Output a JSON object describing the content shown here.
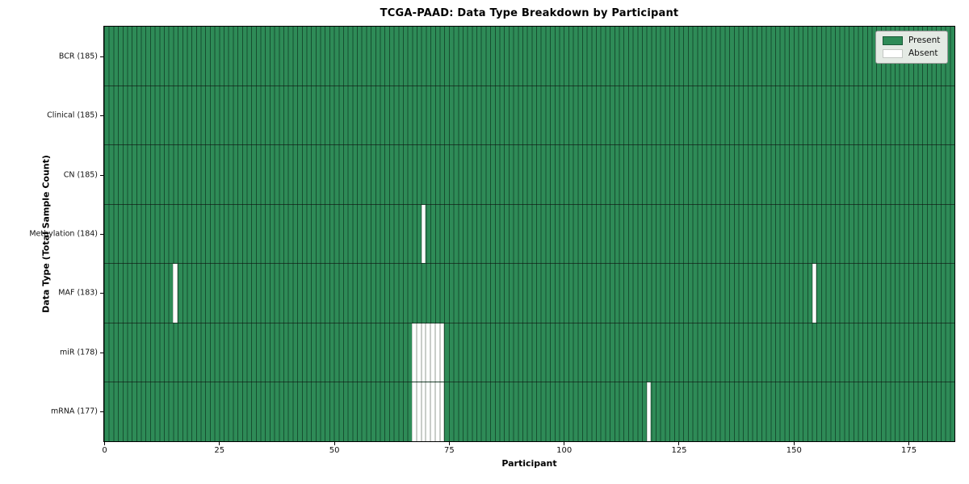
{
  "chart_data": {
    "type": "heatmap",
    "title": "TCGA-PAAD: Data Type Breakdown by Participant",
    "xlabel": "Participant",
    "ylabel": "Data Type (Total Sample Count)",
    "n_participants": 185,
    "xlim": [
      0,
      185
    ],
    "x_ticks": [
      0,
      25,
      50,
      75,
      100,
      125,
      150,
      175
    ],
    "grid": "cell-borders",
    "legend": {
      "position": "upper-right",
      "entries": [
        {
          "label": "Present",
          "color": "#2e8b57"
        },
        {
          "label": "Absent",
          "color": "#ffffff"
        }
      ]
    },
    "rows": [
      {
        "label": "BCR (185)",
        "data_type": "BCR",
        "total_samples": 185,
        "absent_participants": []
      },
      {
        "label": "Clinical (185)",
        "data_type": "Clinical",
        "total_samples": 185,
        "absent_participants": []
      },
      {
        "label": "CN (185)",
        "data_type": "CN",
        "total_samples": 185,
        "absent_participants": []
      },
      {
        "label": "Methylation (184)",
        "data_type": "Methylation",
        "total_samples": 184,
        "absent_participants": [
          69
        ]
      },
      {
        "label": "MAF (183)",
        "data_type": "MAF",
        "total_samples": 183,
        "absent_participants": [
          15,
          154
        ]
      },
      {
        "label": "miR (178)",
        "data_type": "miR",
        "total_samples": 178,
        "absent_participants": [
          67,
          68,
          69,
          70,
          71,
          72,
          73
        ]
      },
      {
        "label": "mRNA (177)",
        "data_type": "mRNA",
        "total_samples": 177,
        "absent_participants": [
          67,
          68,
          69,
          70,
          71,
          72,
          73,
          118
        ]
      }
    ],
    "colors": {
      "present": "#2e8b57",
      "absent": "#ffffff",
      "cell_edge": "#14492c",
      "row_divider": "#262626",
      "legend_background": "#e4eae4",
      "figure_background": "#ffffff"
    }
  }
}
